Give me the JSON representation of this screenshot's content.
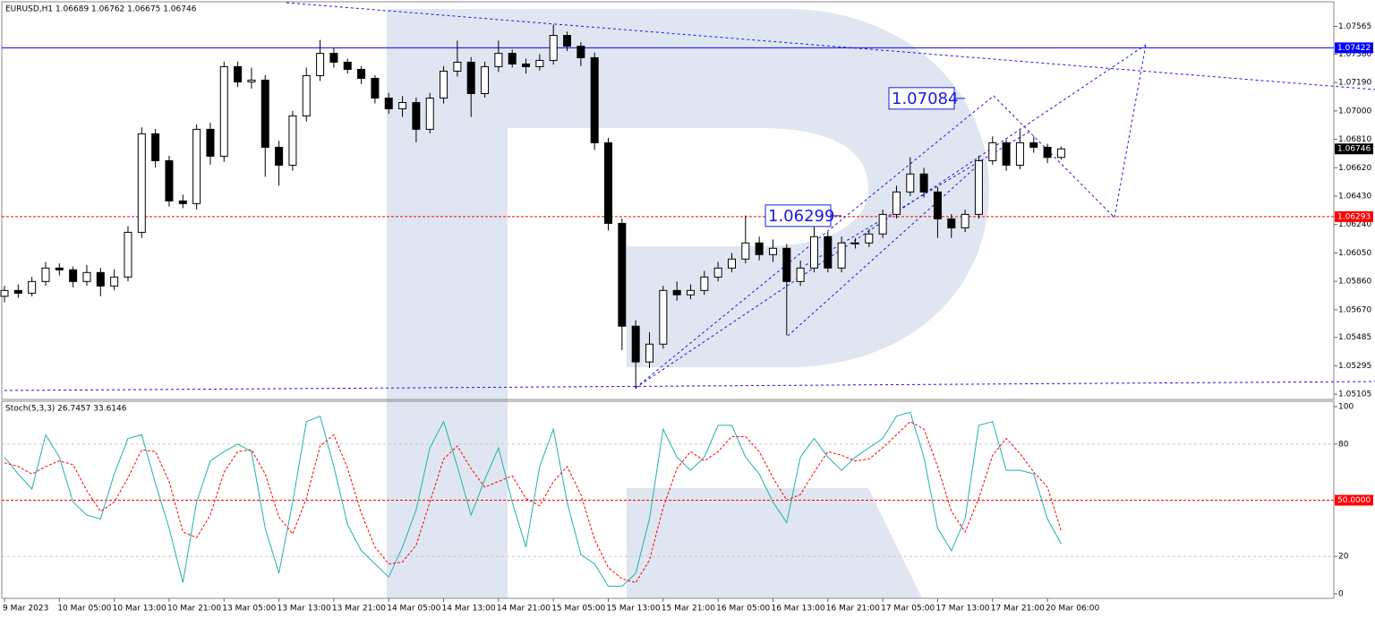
{
  "chart_data": [
    {
      "type": "candlestick",
      "title": "EURUSD,H1  1.06689 1.06762 1.06675 1.06746",
      "categories": [
        "9 Mar 2023",
        null,
        null,
        null,
        "10 Mar 05:00",
        null,
        null,
        null,
        "10 Mar 13:00",
        null,
        null,
        null,
        "10 Mar 21:00",
        null,
        null,
        null,
        "13 Mar 05:00",
        null,
        null,
        null,
        "13 Mar 13:00",
        null,
        null,
        null,
        "13 Mar 21:00",
        null,
        null,
        null,
        "14 Mar 05:00",
        null,
        null,
        null,
        "14 Mar 13:00",
        null,
        null,
        null,
        "14 Mar 21:00",
        null,
        null,
        null,
        "15 Mar 05:00",
        null,
        null,
        null,
        "15 Mar 13:00",
        null,
        null,
        null,
        "15 Mar 21:00",
        null,
        null,
        null,
        "16 Mar 05:00",
        null,
        null,
        null,
        "16 Mar 13:00",
        null,
        null,
        null,
        "16 Mar 21:00",
        null,
        null,
        null,
        "17 Mar 05:00",
        null,
        null,
        null,
        "17 Mar 13:00",
        null,
        null,
        null,
        "17 Mar 21:00",
        null,
        null,
        null,
        "20 Mar 06:00",
        null
      ],
      "open": [
        1.0576,
        1.05799,
        1.05781,
        1.05859,
        1.05949,
        1.05937,
        1.05859,
        1.05919,
        1.05829,
        1.05889,
        1.06188,
        1.06847,
        1.06667,
        1.06398,
        1.0638,
        1.06877,
        1.06697,
        1.07296,
        1.07194,
        1.07206,
        1.06757,
        1.06637,
        1.06967,
        1.07236,
        1.07385,
        1.07326,
        1.07278,
        1.07218,
        1.07086,
        1.07014,
        1.07056,
        1.06877,
        1.07086,
        1.07266,
        1.07326,
        1.07116,
        1.07296,
        1.07385,
        1.07314,
        1.07296,
        1.07338,
        1.07505,
        1.07433,
        1.07356,
        1.06787,
        1.06248,
        1.0556,
        1.05321,
        1.0544,
        1.05799,
        1.0577,
        1.05799,
        1.05889,
        1.05949,
        1.06009,
        1.06117,
        1.06039,
        1.06081,
        1.05859,
        1.05949,
        1.06159,
        1.05949,
        1.06117,
        1.06117,
        1.06177,
        1.06308,
        1.06458,
        1.06578,
        1.06458,
        1.06278,
        1.06218,
        1.06308,
        1.06667,
        1.06787,
        1.06637,
        1.06787,
        1.06757,
        1.06689
      ],
      "high": [
        1.0583,
        1.0584,
        1.0589,
        1.0599,
        1.0598,
        1.0596,
        1.0597,
        1.0595,
        1.0594,
        1.0623,
        1.0689,
        1.0688,
        1.067,
        1.0644,
        1.0691,
        1.0692,
        1.0733,
        1.0733,
        1.0729,
        1.0724,
        1.068,
        1.07,
        1.0729,
        1.07475,
        1.0742,
        1.0735,
        1.073,
        1.0724,
        1.0712,
        1.071,
        1.0709,
        1.0712,
        1.073,
        1.0747,
        1.0736,
        1.0733,
        1.0747,
        1.0741,
        1.0735,
        1.0738,
        1.07577,
        1.0753,
        1.0746,
        1.0739,
        1.0682,
        1.0628,
        1.056,
        1.0552,
        1.0583,
        1.0586,
        1.0584,
        1.0593,
        1.0599,
        1.0605,
        1.063,
        1.0616,
        1.0614,
        1.0611,
        1.06,
        1.0624,
        1.0619,
        1.0616,
        1.0615,
        1.0621,
        1.0634,
        1.065,
        1.0669,
        1.0662,
        1.0649,
        1.0631,
        1.0634,
        1.067,
        1.0683,
        1.0681,
        1.0687,
        1.0683,
        1.0678,
        1.06762
      ],
      "low": [
        1.0572,
        1.0575,
        1.0576,
        1.0583,
        1.059,
        1.0582,
        1.0583,
        1.0576,
        1.058,
        1.0586,
        1.0615,
        1.0662,
        1.0636,
        1.0635,
        1.0634,
        1.0664,
        1.0666,
        1.0716,
        1.0715,
        1.0656,
        1.065,
        1.066,
        1.0693,
        1.072,
        1.0729,
        1.0725,
        1.0718,
        1.0705,
        1.0698,
        1.0696,
        1.0679,
        1.0685,
        1.0705,
        1.0723,
        1.0696,
        1.0709,
        1.0726,
        1.0729,
        1.0725,
        1.0727,
        1.0731,
        1.074,
        1.073,
        1.0674,
        1.062,
        1.054,
        1.0514,
        1.0528,
        1.0541,
        1.0573,
        1.0574,
        1.0577,
        1.0586,
        1.0592,
        1.0598,
        1.06,
        1.0599,
        1.055,
        1.0583,
        1.0592,
        1.0592,
        1.0592,
        1.0608,
        1.0609,
        1.0615,
        1.0628,
        1.0643,
        1.0642,
        1.0615,
        1.0615,
        1.0619,
        1.0628,
        1.0664,
        1.066,
        1.0661,
        1.0672,
        1.0665,
        1.06675
      ],
      "close": [
        1.05799,
        1.05781,
        1.05859,
        1.05949,
        1.05937,
        1.05859,
        1.05919,
        1.05829,
        1.05889,
        1.06188,
        1.06847,
        1.06667,
        1.06398,
        1.0638,
        1.06877,
        1.06697,
        1.07296,
        1.07194,
        1.07206,
        1.06757,
        1.06637,
        1.06967,
        1.07236,
        1.07385,
        1.07326,
        1.07278,
        1.07218,
        1.07086,
        1.07014,
        1.07056,
        1.06877,
        1.07086,
        1.07266,
        1.07326,
        1.07116,
        1.07296,
        1.07385,
        1.07314,
        1.07296,
        1.07338,
        1.07505,
        1.07433,
        1.07356,
        1.06787,
        1.06248,
        1.0556,
        1.05321,
        1.0544,
        1.05799,
        1.0577,
        1.05799,
        1.05889,
        1.05949,
        1.06009,
        1.06117,
        1.06039,
        1.06081,
        1.05859,
        1.05949,
        1.06159,
        1.05949,
        1.06117,
        1.06117,
        1.06177,
        1.06308,
        1.06458,
        1.06578,
        1.06458,
        1.06278,
        1.06218,
        1.06308,
        1.06667,
        1.06787,
        1.06637,
        1.06787,
        1.06757,
        1.06689,
        1.06746
      ],
      "ylim": [
        1.0507,
        1.0773
      ],
      "yticks": [
        1.07565,
        {
          "value": 1.0738,
          "label": "1.07380"
        },
        {
          "value": 1.0719,
          "label": "1.07190"
        },
        {
          "value": 1.07,
          "label": "1.07000"
        },
        {
          "value": 1.0681,
          "label": "1.06810"
        },
        {
          "value": 1.0662,
          "label": "1.06620"
        },
        {
          "value": 1.0643,
          "label": "1.06430"
        },
        {
          "value": 1.0624,
          "label": "1.06240"
        },
        {
          "value": 1.0605,
          "label": "1.06050"
        },
        {
          "value": 1.0586,
          "label": "1.05860"
        },
        {
          "value": 1.0567,
          "label": "1.05670"
        },
        1.05485,
        1.05295,
        1.05105
      ],
      "levels": [
        {
          "value": 1.07422,
          "color": "#0000ff",
          "dashed": false
        },
        {
          "value": 1.06293,
          "color": "#ff0000",
          "dashed": true
        }
      ],
      "current_price": 1.06746,
      "annotations": [
        1.07084,
        1.06299
      ],
      "up_color": "#ffffff",
      "down_color": "#000000"
    },
    {
      "type": "line",
      "title": "Stoch(5,3,3) 26.7457 33.6146",
      "series": [
        {
          "color": "#20b2aa",
          "dashed": false,
          "values": [
            73,
            64,
            56,
            85,
            73,
            49,
            42,
            40,
            64,
            83,
            85,
            59,
            35,
            6,
            49,
            71,
            76,
            80,
            76,
            35,
            11,
            49,
            92,
            95,
            68,
            37,
            23,
            16,
            9,
            25,
            45,
            78,
            92,
            68,
            42,
            61,
            78,
            49,
            25,
            68,
            88,
            49,
            21,
            16,
            4,
            4,
            11,
            40,
            88,
            73,
            66,
            73,
            90,
            90,
            73,
            64,
            49,
            38,
            73,
            83,
            73,
            66,
            73,
            78,
            83,
            95,
            97,
            73,
            35,
            23,
            40,
            90,
            92,
            66,
            66,
            64,
            40,
            26.7457
          ]
        },
        {
          "color": "#ff0000",
          "dashed": true,
          "values": [
            70,
            68,
            64,
            68,
            71,
            69,
            55,
            44,
            49,
            62,
            77,
            76,
            60,
            33,
            30,
            42,
            65,
            76,
            77,
            64,
            41,
            32,
            51,
            79,
            85,
            67,
            43,
            25,
            16,
            17,
            26,
            49,
            72,
            79,
            67,
            57,
            60,
            63,
            51,
            47,
            60,
            68,
            53,
            29,
            14,
            8,
            6,
            18,
            46,
            67,
            76,
            71,
            76,
            84,
            84,
            76,
            62,
            50,
            53,
            65,
            76,
            74,
            71,
            72,
            78,
            85,
            92,
            88,
            68,
            44,
            33,
            51,
            74,
            83,
            75,
            65,
            57,
            33.6146
          ]
        }
      ],
      "ylim": [
        0,
        100
      ],
      "yticks": [
        0,
        20,
        80,
        100
      ],
      "levels": [
        {
          "value": 50,
          "label": "50.0000",
          "color": "#ff0000"
        }
      ],
      "grid": true
    }
  ]
}
